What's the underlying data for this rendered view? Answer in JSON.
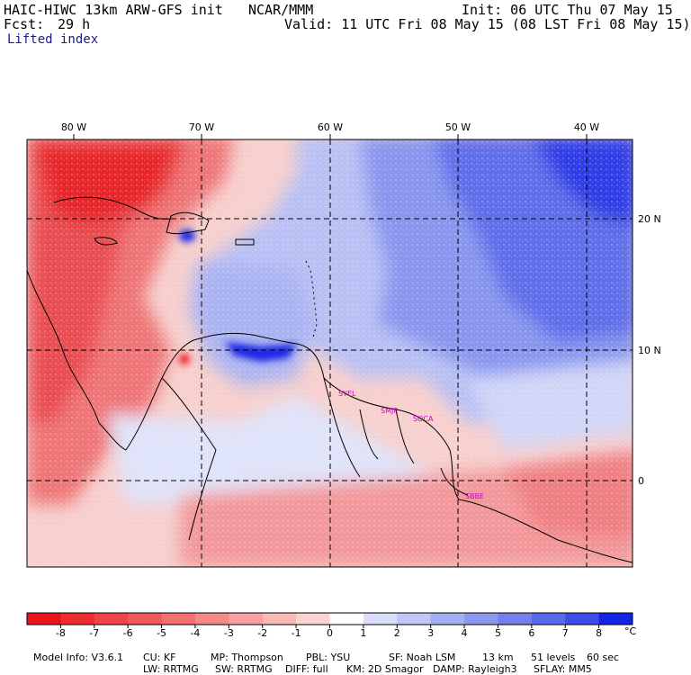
{
  "header": {
    "model": "HAIC-HIWC 13km ARW-GFS init",
    "org": "NCAR/MMM",
    "init": "Init: 06 UTC Thu 07 May 15",
    "fcst_label": "Fcst:",
    "fcst_value": "29 h",
    "valid": "Valid: 11 UTC Fri 08 May 15 (08 LST Fri 08 May 15)",
    "field": "Lifted index"
  },
  "map": {
    "lon_labels": [
      "80 W",
      "70 W",
      "60 W",
      "50 W",
      "40 W"
    ],
    "lat_labels": [
      "20 N",
      "10 N",
      "0"
    ],
    "station_labels": [
      "SYEL",
      "SMJP",
      "SOCA",
      "SBBE"
    ],
    "colors": {
      "warm_strong": "#e8141a",
      "warm": "#f06a6a",
      "warm_light": "#f7b3b0",
      "neutral": "#fbe5e4",
      "cool_light": "#c8cff5",
      "cool": "#7f8ff0",
      "cool_strong": "#1424e6",
      "gridline": "#000000",
      "station_text": "#cc00cc"
    }
  },
  "colorbar": {
    "labels": [
      "-8",
      "-7",
      "-6",
      "-5",
      "-4",
      "-3",
      "-2",
      "-1",
      "0",
      "1",
      "2",
      "3",
      "4",
      "5",
      "6",
      "7",
      "8"
    ],
    "unit": "°C",
    "colors": [
      "#e8141a",
      "#ec2c2f",
      "#ef4547",
      "#f1595c",
      "#f37071",
      "#f58888",
      "#f7a09f",
      "#f9b9b7",
      "#fcd3d1",
      "#ffffff",
      "#d9ddf8",
      "#c0c6f5",
      "#a6aff2",
      "#8d97ef",
      "#7480ec",
      "#5a68e9",
      "#3f4de6",
      "#1424e6"
    ]
  },
  "footer": {
    "line1": [
      "Model Info: V3.6.1",
      "CU: KF",
      "MP: Thompson",
      "PBL: YSU",
      "SF: Noah LSM",
      "13 km",
      "51 levels",
      "60 sec"
    ],
    "line2": [
      "LW: RRTMG",
      "SW: RRTMG",
      "DIFF: full",
      "KM: 2D Smagor",
      "DAMP: Rayleigh3",
      "SFLAY: MM5"
    ]
  }
}
